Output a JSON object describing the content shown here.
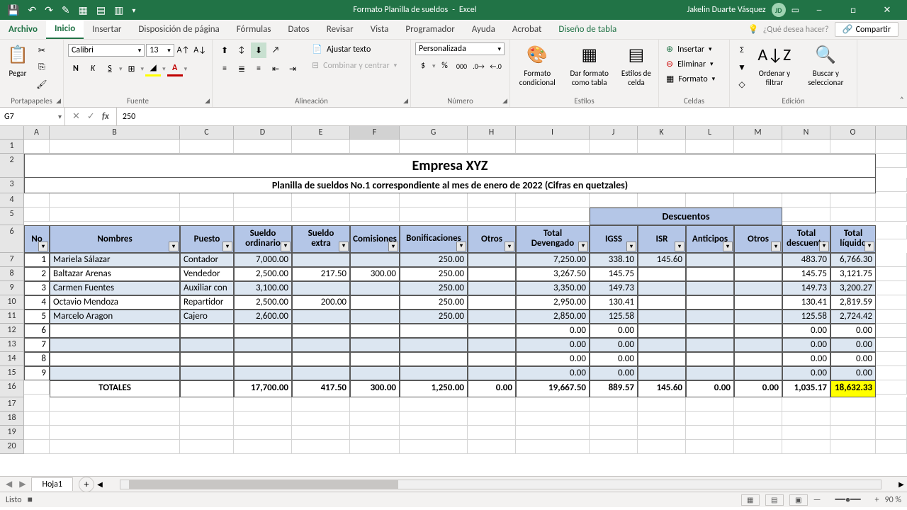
{
  "app": {
    "title_doc": "Formato Planilla de sueldos",
    "title_app": "Excel",
    "user_name": "Jakelin Duarte Vásquez",
    "user_initials": "JD"
  },
  "tabs": {
    "archivo": "Archivo",
    "inicio": "Inicio",
    "insertar": "Insertar",
    "disposicion": "Disposición de página",
    "formulas": "Fórmulas",
    "datos": "Datos",
    "revisar": "Revisar",
    "vista": "Vista",
    "programador": "Programador",
    "ayuda": "Ayuda",
    "acrobat": "Acrobat",
    "diseno": "Diseño de tabla",
    "tell_me": "¿Qué desea hacer?",
    "compartir": "Compartir"
  },
  "ribbon": {
    "pegar": "Pegar",
    "portapapeles": "Portapapeles",
    "font_name": "Calibri",
    "font_size": "13",
    "fuente": "Fuente",
    "ajustar": "Ajustar texto",
    "combinar": "Combinar y centrar",
    "alineacion": "Alineación",
    "num_format": "Personalizada",
    "numero": "Número",
    "formato_cond": "Formato condicional",
    "dar_formato": "Dar formato como tabla",
    "estilos_celda": "Estilos de celda",
    "estilos": "Estilos",
    "insertar_c": "Insertar",
    "eliminar_c": "Eliminar",
    "formato_c": "Formato",
    "celdas": "Celdas",
    "ordenar": "Ordenar y filtrar",
    "buscar": "Buscar y seleccionar",
    "edicion": "Edición"
  },
  "formula_bar": {
    "cell_ref": "G7",
    "value": "250"
  },
  "cols": [
    "A",
    "B",
    "C",
    "D",
    "E",
    "F",
    "G",
    "H",
    "I",
    "J",
    "K",
    "L",
    "M",
    "N",
    "O"
  ],
  "sheet": {
    "company": "Empresa XYZ",
    "subtitle": "Planilla de sueldos No.1 correspondiente al mes de enero de 2022 (Cifras en quetzales)",
    "descuentos": "Descuentos",
    "headers": {
      "no": "No",
      "nombres": "Nombres",
      "puesto": "Puesto",
      "sueldo_ord": "Sueldo ordinario",
      "sueldo_extra": "Sueldo extra",
      "comision": "Comisiones",
      "bonif": "Bonificaciones",
      "otros": "Otros",
      "total_dev": "Total Devengado",
      "igss": "IGSS",
      "isr": "ISR",
      "anticipos": "Anticipos",
      "otros_d": "Otros",
      "total_desc": "Total descuento",
      "total_liq": "Total líquido"
    },
    "rows": [
      {
        "no": "1",
        "nombre": "Mariela Sálazar",
        "puesto": "Contador",
        "ord": "7,000.00",
        "extra": "",
        "com": "",
        "bonif": "250.00",
        "otros": "",
        "dev": "7,250.00",
        "igss": "338.10",
        "isr": "145.60",
        "ant": "",
        "od": "",
        "desc": "483.70",
        "liq": "6,766.30"
      },
      {
        "no": "2",
        "nombre": "Baltazar Arenas",
        "puesto": "Vendedor",
        "ord": "2,500.00",
        "extra": "217.50",
        "com": "300.00",
        "bonif": "250.00",
        "otros": "",
        "dev": "3,267.50",
        "igss": "145.75",
        "isr": "",
        "ant": "",
        "od": "",
        "desc": "145.75",
        "liq": "3,121.75"
      },
      {
        "no": "3",
        "nombre": "Carmen Fuentes",
        "puesto": "Auxiliar con",
        "ord": "3,100.00",
        "extra": "",
        "com": "",
        "bonif": "250.00",
        "otros": "",
        "dev": "3,350.00",
        "igss": "149.73",
        "isr": "",
        "ant": "",
        "od": "",
        "desc": "149.73",
        "liq": "3,200.27"
      },
      {
        "no": "4",
        "nombre": "Octavio Mendoza",
        "puesto": "Repartidor",
        "ord": "2,500.00",
        "extra": "200.00",
        "com": "",
        "bonif": "250.00",
        "otros": "",
        "dev": "2,950.00",
        "igss": "130.41",
        "isr": "",
        "ant": "",
        "od": "",
        "desc": "130.41",
        "liq": "2,819.59"
      },
      {
        "no": "5",
        "nombre": "Marcelo Aragon",
        "puesto": "Cajero",
        "ord": "2,600.00",
        "extra": "",
        "com": "",
        "bonif": "250.00",
        "otros": "",
        "dev": "2,850.00",
        "igss": "125.58",
        "isr": "",
        "ant": "",
        "od": "",
        "desc": "125.58",
        "liq": "2,724.42"
      },
      {
        "no": "6",
        "nombre": "",
        "puesto": "",
        "ord": "",
        "extra": "",
        "com": "",
        "bonif": "",
        "otros": "",
        "dev": "0.00",
        "igss": "0.00",
        "isr": "",
        "ant": "",
        "od": "",
        "desc": "0.00",
        "liq": "0.00"
      },
      {
        "no": "7",
        "nombre": "",
        "puesto": "",
        "ord": "",
        "extra": "",
        "com": "",
        "bonif": "",
        "otros": "",
        "dev": "0.00",
        "igss": "0.00",
        "isr": "",
        "ant": "",
        "od": "",
        "desc": "0.00",
        "liq": "0.00"
      },
      {
        "no": "8",
        "nombre": "",
        "puesto": "",
        "ord": "",
        "extra": "",
        "com": "",
        "bonif": "",
        "otros": "",
        "dev": "0.00",
        "igss": "0.00",
        "isr": "",
        "ant": "",
        "od": "",
        "desc": "0.00",
        "liq": "0.00"
      },
      {
        "no": "9",
        "nombre": "",
        "puesto": "",
        "ord": "",
        "extra": "",
        "com": "",
        "bonif": "",
        "otros": "",
        "dev": "0.00",
        "igss": "0.00",
        "isr": "",
        "ant": "",
        "od": "",
        "desc": "0.00",
        "liq": "0.00"
      }
    ],
    "totals": {
      "label": "TOTALES",
      "ord": "17,700.00",
      "extra": "417.50",
      "com": "300.00",
      "bonif": "1,250.00",
      "otros": "0.00",
      "dev": "19,667.50",
      "igss": "889.57",
      "isr": "145.60",
      "ant": "0.00",
      "od": "0.00",
      "desc": "1,035.17",
      "liq": "18,632.33"
    }
  },
  "tabs_bottom": {
    "hoja1": "Hoja1"
  },
  "status": {
    "listo": "Listo",
    "zoom": "90 %"
  }
}
